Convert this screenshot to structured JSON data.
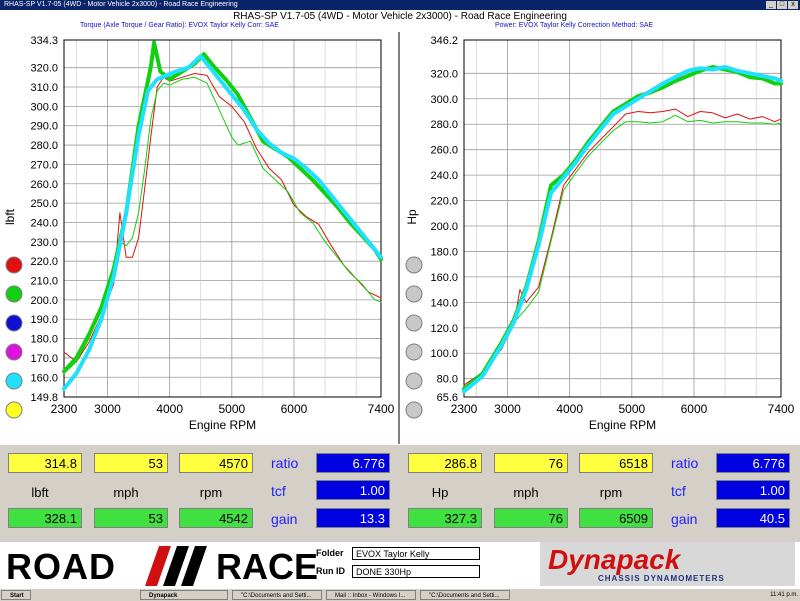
{
  "window": {
    "title": "RHAS-SP V1.7-05   (4WD - Motor Vehicle 2x3000) - Road Race Engineering",
    "header_main": "RHAS-SP V1.7-05   (4WD - Motor Vehicle 2x3000) - Road Race Engineering",
    "header_left": "Torque (Axle Torque / Gear Ratio): EVOX Taylor Kelly     Corr: SAE",
    "header_right": "Power: EVOX Taylor Kelly     Correction Method: SAE",
    "btn_min": "_",
    "btn_max": "□",
    "btn_close": "x"
  },
  "colors": {
    "red": "#e01010",
    "green": "#10d010",
    "blue": "#1010d0",
    "magenta": "#e010e0",
    "cyan": "#20e0ff",
    "yellow": "#ffff20",
    "grid": "#9a9a9a"
  },
  "chart_data": [
    {
      "type": "line",
      "title": "",
      "xlabel": "Engine RPM",
      "ylabel": "lbft",
      "xlim": [
        2300,
        7400
      ],
      "ylim": [
        149.8,
        334.3
      ],
      "x_ticks": [
        "2300",
        "3000",
        "4000",
        "5000",
        "6000",
        "7400"
      ],
      "y_ticks": [
        "334.3",
        "320.0",
        "310.0",
        "300.0",
        "290.0",
        "280.0",
        "270.0",
        "260.0",
        "250.0",
        "240.0",
        "230.0",
        "220.0",
        "210.0",
        "200.0",
        "190.0",
        "180.0",
        "170.0",
        "160.0",
        "149.8"
      ],
      "series": [
        {
          "color": "red",
          "width": 1,
          "points": [
            [
              2300,
              173
            ],
            [
              2500,
              168
            ],
            [
              2700,
              178
            ],
            [
              2900,
              192
            ],
            [
              3100,
              208
            ],
            [
              3200,
              245
            ],
            [
              3300,
              222
            ],
            [
              3400,
              222
            ],
            [
              3500,
              232
            ],
            [
              3600,
              258
            ],
            [
              3700,
              285
            ],
            [
              3800,
              310
            ],
            [
              3900,
              315
            ],
            [
              4000,
              313
            ],
            [
              4200,
              315
            ],
            [
              4400,
              317
            ],
            [
              4600,
              316
            ],
            [
              4800,
              305
            ],
            [
              5000,
              300
            ],
            [
              5200,
              292
            ],
            [
              5400,
              278
            ],
            [
              5600,
              268
            ],
            [
              5800,
              262
            ],
            [
              6000,
              249
            ],
            [
              6200,
              243
            ],
            [
              6400,
              239
            ],
            [
              6600,
              228
            ],
            [
              6800,
              218
            ],
            [
              7000,
              211
            ],
            [
              7200,
              204
            ],
            [
              7400,
              201
            ]
          ]
        },
        {
          "color": "green",
          "width": 1,
          "points": [
            [
              2300,
              162
            ],
            [
              2500,
              168
            ],
            [
              2700,
              180
            ],
            [
              2900,
              196
            ],
            [
              3100,
              212
            ],
            [
              3200,
              230
            ],
            [
              3300,
              228
            ],
            [
              3400,
              232
            ],
            [
              3500,
              245
            ],
            [
              3600,
              268
            ],
            [
              3700,
              294
            ],
            [
              3800,
              308
            ],
            [
              3900,
              312
            ],
            [
              4000,
              311
            ],
            [
              4200,
              314
            ],
            [
              4400,
              315
            ],
            [
              4600,
              312
            ],
            [
              4800,
              298
            ],
            [
              5000,
              284
            ],
            [
              5100,
              280
            ],
            [
              5300,
              282
            ],
            [
              5500,
              268
            ],
            [
              5700,
              262
            ],
            [
              5900,
              256
            ],
            [
              6100,
              245
            ],
            [
              6300,
              240
            ],
            [
              6500,
              230
            ],
            [
              6700,
              222
            ],
            [
              6900,
              214
            ],
            [
              7100,
              208
            ],
            [
              7300,
              200
            ],
            [
              7400,
              199
            ]
          ]
        },
        {
          "color": "green",
          "width": 4,
          "points": [
            [
              2300,
              163
            ],
            [
              2500,
              170
            ],
            [
              2700,
              182
            ],
            [
              2900,
              196
            ],
            [
              3100,
              216
            ],
            [
              3300,
              245
            ],
            [
              3500,
              290
            ],
            [
              3650,
              313
            ],
            [
              3700,
              321
            ],
            [
              3750,
              333
            ],
            [
              3850,
              318
            ],
            [
              4000,
              314
            ],
            [
              4200,
              318
            ],
            [
              4400,
              322
            ],
            [
              4550,
              327
            ],
            [
              4700,
              321
            ],
            [
              4900,
              314
            ],
            [
              5100,
              306
            ],
            [
              5300,
              294
            ],
            [
              5500,
              282
            ],
            [
              5700,
              278
            ],
            [
              5900,
              274
            ],
            [
              6100,
              268
            ],
            [
              6300,
              262
            ],
            [
              6500,
              255
            ],
            [
              6700,
              248
            ],
            [
              6900,
              240
            ],
            [
              7100,
              233
            ],
            [
              7300,
              226
            ],
            [
              7400,
              221
            ]
          ]
        },
        {
          "color": "cyan",
          "width": 4,
          "points": [
            [
              2300,
              154
            ],
            [
              2500,
              162
            ],
            [
              2700,
              174
            ],
            [
              2900,
              190
            ],
            [
              3100,
              212
            ],
            [
              3300,
              245
            ],
            [
              3500,
              285
            ],
            [
              3650,
              308
            ],
            [
              3800,
              314
            ],
            [
              3950,
              316
            ],
            [
              4100,
              318
            ],
            [
              4300,
              320
            ],
            [
              4500,
              326
            ],
            [
              4650,
              320
            ],
            [
              4800,
              314
            ],
            [
              5000,
              306
            ],
            [
              5200,
              298
            ],
            [
              5400,
              288
            ],
            [
              5600,
              281
            ],
            [
              5800,
              276
            ],
            [
              6000,
              273
            ],
            [
              6200,
              268
            ],
            [
              6400,
              262
            ],
            [
              6600,
              254
            ],
            [
              6800,
              246
            ],
            [
              7000,
              238
            ],
            [
              7200,
              230
            ],
            [
              7400,
              222
            ]
          ]
        }
      ]
    },
    {
      "type": "line",
      "title": "",
      "xlabel": "Engine RPM",
      "ylabel": "Hp",
      "xlim": [
        2300,
        7400
      ],
      "ylim": [
        65.6,
        346.2
      ],
      "x_ticks": [
        "2300",
        "3000",
        "4000",
        "5000",
        "6000",
        "7400"
      ],
      "y_ticks": [
        "346.2",
        "320.0",
        "300.0",
        "280.0",
        "260.0",
        "240.0",
        "220.0",
        "200.0",
        "180.0",
        "160.0",
        "140.0",
        "120.0",
        "100.0",
        "80.0",
        "65.6"
      ],
      "series": [
        {
          "color": "red",
          "width": 1,
          "points": [
            [
              2300,
              75
            ],
            [
              2600,
              85
            ],
            [
              2900,
              103
            ],
            [
              3100,
              122
            ],
            [
              3200,
              150
            ],
            [
              3300,
              140
            ],
            [
              3500,
              152
            ],
            [
              3700,
              190
            ],
            [
              3900,
              232
            ],
            [
              4100,
              245
            ],
            [
              4300,
              258
            ],
            [
              4500,
              268
            ],
            [
              4700,
              278
            ],
            [
              4900,
              288
            ],
            [
              5100,
              290
            ],
            [
              5300,
              289
            ],
            [
              5500,
              290
            ],
            [
              5700,
              292
            ],
            [
              5900,
              286
            ],
            [
              6100,
              290
            ],
            [
              6300,
              289
            ],
            [
              6500,
              285
            ],
            [
              6700,
              288
            ],
            [
              6900,
              284
            ],
            [
              7100,
              286
            ],
            [
              7300,
              282
            ],
            [
              7400,
              284
            ]
          ]
        },
        {
          "color": "green",
          "width": 1,
          "points": [
            [
              2300,
              72
            ],
            [
              2600,
              82
            ],
            [
              2900,
              104
            ],
            [
              3100,
              124
            ],
            [
              3300,
              135
            ],
            [
              3500,
              148
            ],
            [
              3700,
              188
            ],
            [
              3900,
              228
            ],
            [
              4100,
              242
            ],
            [
              4300,
              255
            ],
            [
              4500,
              265
            ],
            [
              4700,
              275
            ],
            [
              4900,
              282
            ],
            [
              5100,
              282
            ],
            [
              5300,
              281
            ],
            [
              5500,
              282
            ],
            [
              5700,
              287
            ],
            [
              5900,
              282
            ],
            [
              6100,
              283
            ],
            [
              6300,
              281
            ],
            [
              6500,
              282
            ],
            [
              6700,
              282
            ],
            [
              6900,
              281
            ],
            [
              7100,
              281
            ],
            [
              7300,
              280
            ],
            [
              7400,
              281
            ]
          ]
        },
        {
          "color": "green",
          "width": 4,
          "points": [
            [
              2300,
              72
            ],
            [
              2600,
              84
            ],
            [
              2900,
              108
            ],
            [
              3100,
              126
            ],
            [
              3300,
              152
            ],
            [
              3500,
              188
            ],
            [
              3700,
              232
            ],
            [
              3900,
              240
            ],
            [
              4100,
              252
            ],
            [
              4300,
              266
            ],
            [
              4500,
              278
            ],
            [
              4700,
              290
            ],
            [
              4900,
              296
            ],
            [
              5100,
              302
            ],
            [
              5300,
              305
            ],
            [
              5500,
              309
            ],
            [
              5700,
              314
            ],
            [
              5900,
              318
            ],
            [
              6100,
              322
            ],
            [
              6300,
              325
            ],
            [
              6500,
              323
            ],
            [
              6700,
              321
            ],
            [
              6900,
              317
            ],
            [
              7100,
              316
            ],
            [
              7300,
              312
            ],
            [
              7400,
              312
            ]
          ]
        },
        {
          "color": "cyan",
          "width": 4,
          "points": [
            [
              2300,
              70
            ],
            [
              2600,
              82
            ],
            [
              2900,
              106
            ],
            [
              3100,
              124
            ],
            [
              3300,
              150
            ],
            [
              3500,
              185
            ],
            [
              3700,
              226
            ],
            [
              3900,
              238
            ],
            [
              4100,
              250
            ],
            [
              4300,
              264
            ],
            [
              4500,
              276
            ],
            [
              4700,
              288
            ],
            [
              4900,
              294
            ],
            [
              5100,
              300
            ],
            [
              5300,
              306
            ],
            [
              5500,
              312
            ],
            [
              5700,
              317
            ],
            [
              5900,
              322
            ],
            [
              6100,
              324
            ],
            [
              6300,
              323
            ],
            [
              6500,
              325
            ],
            [
              6700,
              322
            ],
            [
              6900,
              320
            ],
            [
              7100,
              318
            ],
            [
              7300,
              316
            ],
            [
              7400,
              314
            ]
          ]
        }
      ]
    }
  ],
  "left_dots": [
    "red",
    "green",
    "blue",
    "magenta",
    "cyan",
    "yellow"
  ],
  "readout_left": {
    "top": [
      "314.8",
      "53",
      "4570"
    ],
    "labels": [
      "lbft",
      "mph",
      "rpm"
    ],
    "bottom": [
      "328.1",
      "53",
      "4542"
    ],
    "ratio_label": "ratio",
    "ratio": "6.776",
    "tcf_label": "tcf",
    "tcf": "1.00",
    "gain_label": "gain",
    "gain": "13.3"
  },
  "readout_right": {
    "top": [
      "286.8",
      "76",
      "6518"
    ],
    "labels": [
      "Hp",
      "mph",
      "rpm"
    ],
    "bottom": [
      "327.3",
      "76",
      "6509"
    ],
    "ratio_label": "ratio",
    "ratio": "6.776",
    "tcf_label": "tcf",
    "tcf": "1.00",
    "gain_label": "gain",
    "gain": "40.5"
  },
  "branding": {
    "road": "ROAD",
    "race": "RACE",
    "folder_label": "Folder",
    "folder_value": "EVOX Taylor Kelly",
    "run_label": "Run ID",
    "run_value": "DONE 330Hp",
    "dyna_name": "Dynapack",
    "dyna_sub": "CHASSIS DYNAMOMETERS"
  },
  "taskbar": {
    "start": "Start",
    "tasks": [
      "Dynapack",
      "\"C:\\Documents and Setti...",
      "Mail :: Inbox - Windows I...",
      "\"C:\\Documents and Setti..."
    ],
    "clock": "11:41 p.m."
  }
}
